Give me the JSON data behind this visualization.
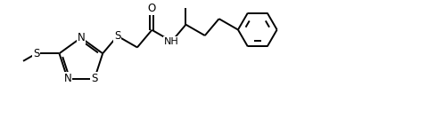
{
  "background_color": "#ffffff",
  "line_color": "#000000",
  "line_width": 1.4,
  "font_size": 8.5,
  "figsize": [
    4.81,
    1.33
  ],
  "dpi": 100,
  "xlim": [
    0,
    10
  ],
  "ylim": [
    0,
    2.77
  ]
}
